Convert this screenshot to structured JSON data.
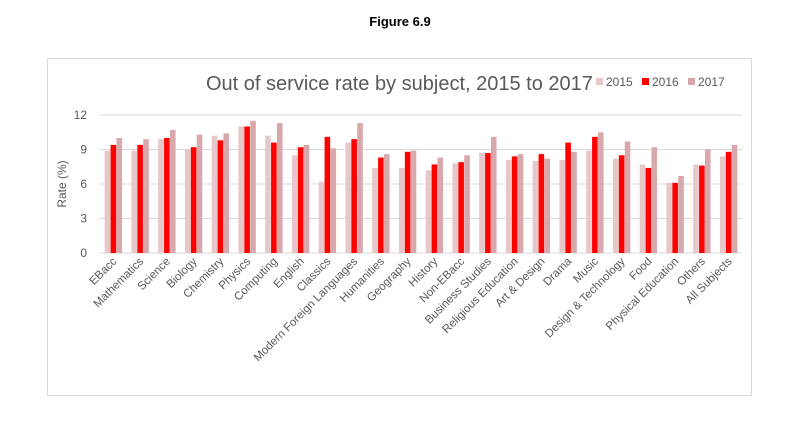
{
  "figure_label": "Figure 6.9",
  "colors": {
    "2015": "#e6c8c8",
    "2016": "#ff0000",
    "2017": "#d9a8ac",
    "grid": "#d9d9d9",
    "text": "#595959"
  },
  "chart_data": {
    "type": "bar",
    "title": "Out of service rate by subject, 2015 to 2017",
    "xlabel": "",
    "ylabel": "Rate (%)",
    "ylim": [
      0,
      12
    ],
    "yticks": [
      0,
      3,
      6,
      9,
      12
    ],
    "grid": true,
    "legend_position": "top-right",
    "categories": [
      "EBacc",
      "Mathematics",
      "Science",
      "Biology",
      "Chemistry",
      "Physics",
      "Computing",
      "English",
      "Classics",
      "Modern Foreign Languages",
      "Humanities",
      "Geography",
      "History",
      "Non-EBacc",
      "Business Studies",
      "Religious Education",
      "Art & Design",
      "Drama",
      "Music",
      "Design & Technology",
      "Food",
      "Physical Education",
      "Others",
      "All Subjects"
    ],
    "series": [
      {
        "name": "2015",
        "values": [
          8.9,
          8.9,
          9.9,
          9.0,
          10.2,
          11.0,
          10.2,
          8.5,
          6.2,
          9.6,
          7.4,
          7.4,
          7.2,
          7.8,
          8.7,
          8.1,
          8.0,
          8.1,
          8.9,
          8.2,
          7.7,
          6.1,
          7.7,
          8.4
        ]
      },
      {
        "name": "2016",
        "values": [
          9.4,
          9.4,
          10.0,
          9.2,
          9.8,
          11.0,
          9.6,
          9.2,
          10.1,
          9.9,
          8.3,
          8.8,
          7.7,
          7.9,
          8.7,
          8.4,
          8.6,
          9.6,
          10.1,
          8.5,
          7.4,
          6.1,
          7.6,
          8.8
        ]
      },
      {
        "name": "2017",
        "values": [
          10.0,
          9.9,
          10.7,
          10.3,
          10.4,
          11.5,
          11.3,
          9.4,
          9.1,
          11.3,
          8.6,
          8.9,
          8.3,
          8.5,
          10.1,
          8.6,
          8.2,
          8.8,
          10.5,
          9.7,
          9.2,
          6.7,
          9.0,
          9.4
        ]
      }
    ]
  }
}
